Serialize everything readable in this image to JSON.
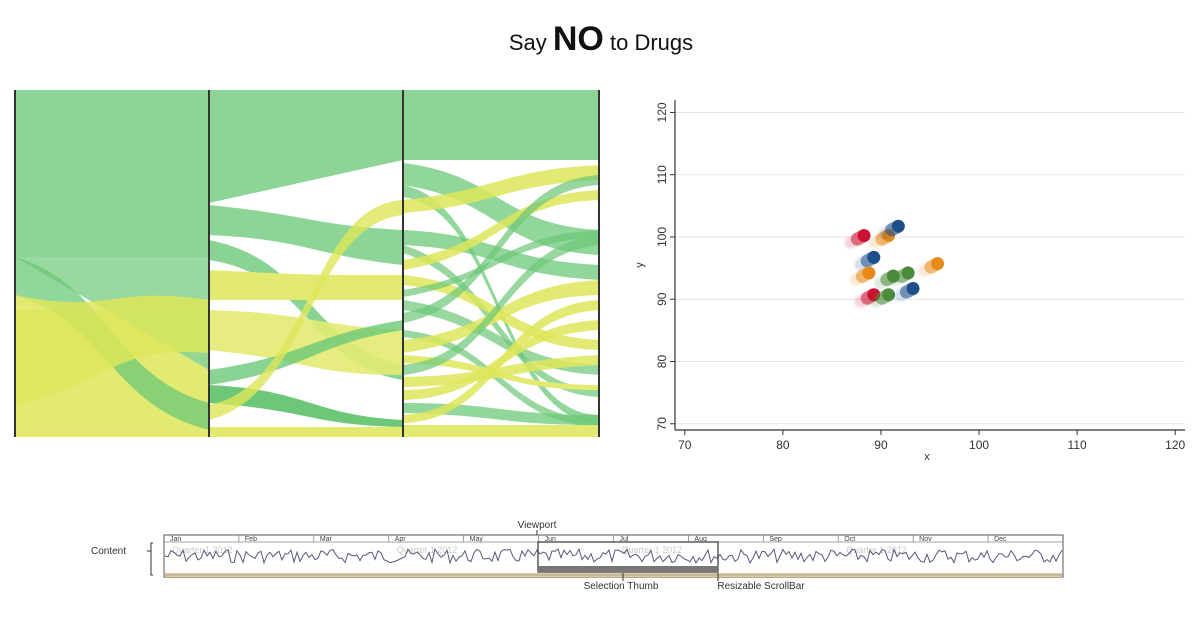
{
  "title": {
    "pre": "Say ",
    "emph": "NO",
    "post": " to Drugs"
  },
  "colors": {
    "green": "#6cc878",
    "yellow": "#d7e53c",
    "axis": "#333333",
    "pill_colors": [
      "#cc1133",
      "#e88a1a",
      "#1f4f8a",
      "#4c8a3c"
    ]
  },
  "chart_data": [
    {
      "type": "scatter",
      "xlabel": "x",
      "ylabel": "y",
      "xlim": [
        69,
        121
      ],
      "ylim": [
        69,
        122
      ],
      "x_ticks": [
        70,
        80,
        90,
        100,
        110,
        120
      ],
      "y_ticks": [
        70,
        80,
        90,
        100,
        110,
        120
      ],
      "grid": "horizontal",
      "points": [
        {
          "x": 88,
          "y": 100,
          "color": "#cc1133"
        },
        {
          "x": 90.5,
          "y": 100,
          "color": "#e88a1a"
        },
        {
          "x": 91.5,
          "y": 101.5,
          "color": "#1f4f8a"
        },
        {
          "x": 89,
          "y": 96.5,
          "color": "#1f4f8a"
        },
        {
          "x": 88.5,
          "y": 94,
          "color": "#e88a1a"
        },
        {
          "x": 91,
          "y": 93.5,
          "color": "#4c8a3c"
        },
        {
          "x": 92.5,
          "y": 94,
          "color": "#4c8a3c"
        },
        {
          "x": 95.5,
          "y": 95.5,
          "color": "#e88a1a"
        },
        {
          "x": 89,
          "y": 90.5,
          "color": "#cc1133"
        },
        {
          "x": 90.5,
          "y": 90.5,
          "color": "#4c8a3c"
        },
        {
          "x": 93,
          "y": 91.5,
          "color": "#1f4f8a"
        }
      ]
    }
  ],
  "timeline": {
    "months": [
      "Jan",
      "Feb",
      "Mar",
      "Apr",
      "May",
      "Jun",
      "Jul",
      "Aug",
      "Sep",
      "Oct",
      "Nov",
      "Dec"
    ],
    "watermark": "Quarter 1 2012",
    "labels": {
      "viewport": "Viewport",
      "content": "Content",
      "selection_thumb": "Selection Thumb",
      "scrollbar": "Resizable ScrollBar"
    }
  }
}
